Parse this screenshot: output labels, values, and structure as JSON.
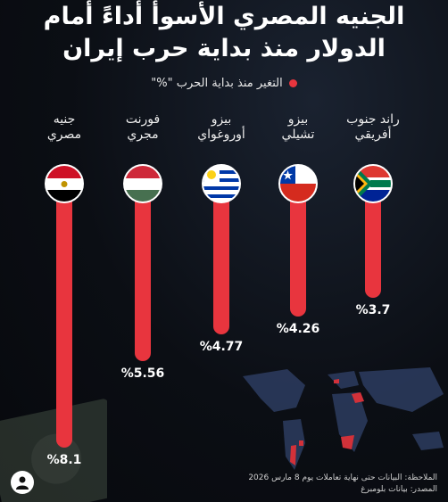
{
  "chart_data": {
    "type": "bar",
    "title": "الجنيه المصري الأسوأ أداءً أمام الدولار منذ بداية حرب إيران",
    "title_line1": "الجنيه المصري الأسوأ أداءً أمام",
    "title_line2": "الدولار منذ بداية حرب إيران",
    "legend": "التغير منذ بداية الحرب \"%\"",
    "categories": [
      "راند جنوب أفريقي",
      "بيزو تشيلي",
      "بيزو أوروغواي",
      "فورنت مجري",
      "جنيه مصري"
    ],
    "category_lines": [
      [
        "راند جنوب",
        "أفريقي"
      ],
      [
        "بيزو",
        "تشيلي"
      ],
      [
        "بيزو",
        "أوروغواي"
      ],
      [
        "فورنت",
        "مجري"
      ],
      [
        "جنيه",
        "مصري"
      ]
    ],
    "value_labels": [
      "%3.7",
      "%4.26",
      "%4.77",
      "%5.56",
      "%8.1"
    ],
    "values": [
      3.7,
      4.26,
      4.77,
      5.56,
      8.1
    ],
    "series_color": "#e8353e"
  },
  "notes": {
    "line1": "الملاحظة: البيانات حتى نهاية تعاملات يوم 8 مارس 2026",
    "line2": "المصدر: بيانات بلومبرغ"
  },
  "icons": {
    "flags": [
      "south-africa-flag-icon",
      "chile-flag-icon",
      "uruguay-flag-icon",
      "hungary-flag-icon",
      "egypt-flag-icon"
    ]
  }
}
